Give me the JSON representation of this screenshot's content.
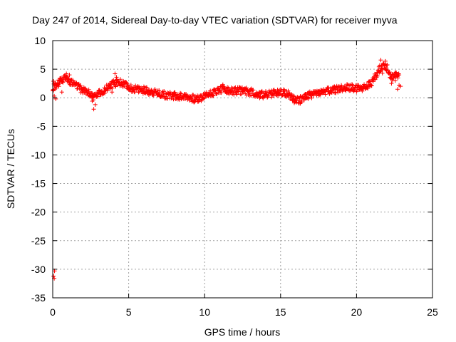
{
  "chart_data": {
    "type": "scatter",
    "title": "Day 247 of 2014, Sidereal Day-to-day VTEC variation (SDTVAR) for receiver myva",
    "xlabel": "GPS time / hours",
    "ylabel": "SDTVAR / TECUs",
    "xlim": [
      0,
      25
    ],
    "ylim": [
      -35,
      10
    ],
    "xticks": [
      0,
      5,
      10,
      15,
      20,
      25
    ],
    "yticks": [
      10,
      5,
      0,
      -5,
      -10,
      -15,
      -20,
      -25,
      -30,
      -35
    ],
    "grid": true,
    "marker": "+",
    "series": [
      {
        "name": "SDTVAR",
        "color": "#ff0000",
        "trace": [
          [
            0.0,
            1.8
          ],
          [
            0.2,
            2.2
          ],
          [
            0.4,
            2.6
          ],
          [
            0.6,
            3.0
          ],
          [
            0.8,
            3.6
          ],
          [
            1.0,
            3.2
          ],
          [
            1.3,
            2.6
          ],
          [
            1.6,
            2.0
          ],
          [
            2.0,
            1.3
          ],
          [
            2.4,
            0.8
          ],
          [
            2.7,
            0.2
          ],
          [
            2.9,
            0.5
          ],
          [
            3.3,
            1.2
          ],
          [
            3.7,
            2.0
          ],
          [
            4.0,
            2.4
          ],
          [
            4.3,
            2.8
          ],
          [
            4.6,
            2.4
          ],
          [
            5.0,
            1.8
          ],
          [
            5.5,
            1.5
          ],
          [
            6.0,
            1.3
          ],
          [
            6.5,
            1.1
          ],
          [
            7.0,
            0.7
          ],
          [
            7.5,
            0.4
          ],
          [
            8.0,
            0.3
          ],
          [
            8.5,
            0.3
          ],
          [
            9.0,
            0.1
          ],
          [
            9.4,
            -0.3
          ],
          [
            9.8,
            0.0
          ],
          [
            10.2,
            0.6
          ],
          [
            10.6,
            1.0
          ],
          [
            11.0,
            1.4
          ],
          [
            11.3,
            1.6
          ],
          [
            11.6,
            1.1
          ],
          [
            12.0,
            1.2
          ],
          [
            12.5,
            1.3
          ],
          [
            13.0,
            1.0
          ],
          [
            13.5,
            0.6
          ],
          [
            14.0,
            0.5
          ],
          [
            14.5,
            0.7
          ],
          [
            15.0,
            1.0
          ],
          [
            15.5,
            0.6
          ],
          [
            15.9,
            -0.1
          ],
          [
            16.2,
            -0.4
          ],
          [
            16.5,
            0.0
          ],
          [
            17.0,
            0.5
          ],
          [
            17.5,
            0.9
          ],
          [
            18.0,
            1.1
          ],
          [
            18.5,
            1.3
          ],
          [
            19.0,
            1.6
          ],
          [
            19.5,
            1.8
          ],
          [
            20.0,
            1.6
          ],
          [
            20.5,
            1.8
          ],
          [
            20.9,
            2.3
          ],
          [
            21.2,
            3.6
          ],
          [
            21.5,
            5.0
          ],
          [
            21.8,
            5.8
          ],
          [
            22.0,
            5.3
          ],
          [
            22.2,
            4.2
          ],
          [
            22.4,
            3.3
          ],
          [
            22.6,
            4.2
          ],
          [
            22.8,
            4.0
          ]
        ],
        "extra_points": [
          [
            0.1,
            0.3
          ],
          [
            0.2,
            -0.2
          ],
          [
            0.15,
            2.6
          ],
          [
            0.35,
            3.1
          ],
          [
            0.9,
            4.2
          ],
          [
            1.1,
            4.0
          ],
          [
            2.7,
            -2.0
          ],
          [
            2.8,
            -1.2
          ],
          [
            2.6,
            -0.6
          ],
          [
            4.1,
            4.2
          ],
          [
            4.2,
            3.6
          ],
          [
            3.9,
            1.0
          ],
          [
            9.3,
            -0.8
          ],
          [
            11.2,
            2.3
          ],
          [
            15.9,
            -0.9
          ],
          [
            16.3,
            -1.0
          ],
          [
            21.6,
            6.6
          ],
          [
            21.9,
            6.4
          ],
          [
            21.7,
            4.3
          ],
          [
            22.3,
            2.5
          ],
          [
            22.7,
            1.5
          ],
          [
            22.8,
            2.2
          ],
          [
            22.55,
            3.0
          ],
          [
            22.9,
            2.0
          ],
          [
            0.05,
            2.9
          ],
          [
            0.6,
            1.0
          ]
        ],
        "outliers": [
          [
            0.05,
            -31.2
          ],
          [
            0.1,
            -31.6
          ],
          [
            0.12,
            -30.3
          ]
        ]
      }
    ]
  }
}
